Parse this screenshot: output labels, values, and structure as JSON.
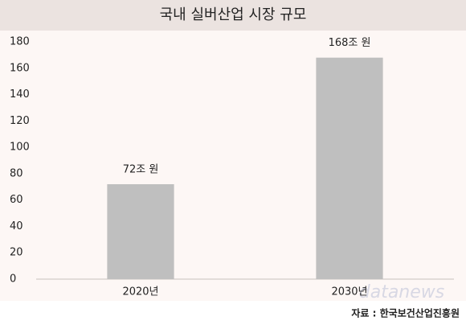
{
  "chart_data": {
    "type": "bar",
    "title": "국내 실버산업 시장 규모",
    "categories": [
      "2020년",
      "2030년"
    ],
    "values": [
      72,
      168
    ],
    "value_labels": [
      "72조 원",
      "168조 원"
    ],
    "color": "#bfbfbf",
    "ylim": [
      0,
      180
    ],
    "yticks": [
      0,
      20,
      40,
      60,
      80,
      100,
      120,
      140,
      160,
      180
    ],
    "grid": false,
    "source": "자료 : 한국보건산업진흥원",
    "watermark": "datanews"
  }
}
